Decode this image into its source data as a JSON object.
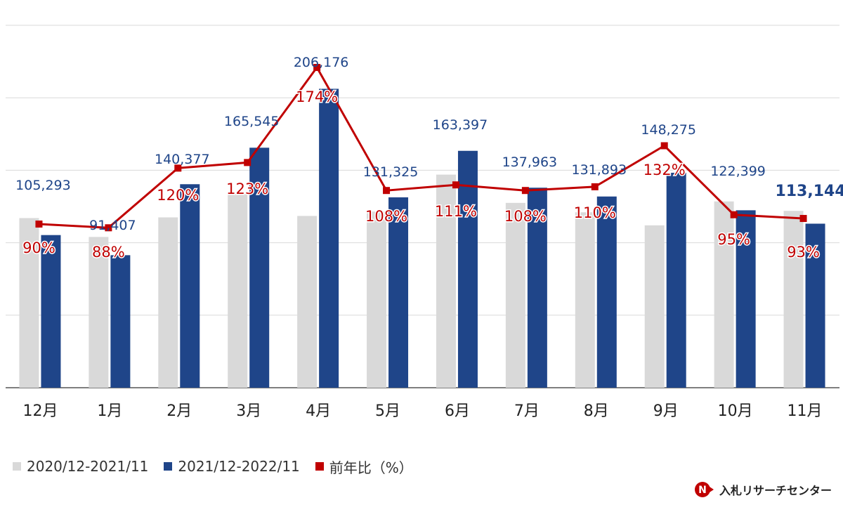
{
  "chart_data": {
    "type": "bar",
    "categories": [
      "12月",
      "1月",
      "2月",
      "3月",
      "4月",
      "5月",
      "6月",
      "7月",
      "8月",
      "9月",
      "10月",
      "11月"
    ],
    "ylim": [
      0,
      250000
    ],
    "grid": true,
    "legend_position": "bottom-left",
    "series": [
      {
        "name": "2020/12-2021/11",
        "kind": "bar",
        "color": "#d9d9d9",
        "values": [
          117000,
          104000,
          117500,
          134000,
          118500,
          121500,
          147000,
          127500,
          121000,
          112000,
          128500,
          122000
        ]
      },
      {
        "name": "2021/12-2022/11",
        "kind": "bar",
        "color": "#1f4589",
        "values": [
          105293,
          91407,
          140377,
          165545,
          206176,
          131325,
          163397,
          137963,
          131893,
          148275,
          122399,
          113144
        ],
        "labels": [
          "105,293",
          "91,407",
          "140,377",
          "165,545",
          "206,176",
          "131,325",
          "163,397",
          "137,963",
          "131,893",
          "148,275",
          "122,399",
          "113,144"
        ]
      },
      {
        "name": "前年比（%）",
        "kind": "line",
        "color": "#c00000",
        "values": [
          90,
          88,
          120,
          123,
          174,
          108,
          111,
          108,
          110,
          132,
          95,
          93
        ],
        "labels": [
          "90%",
          "88%",
          "120%",
          "123%",
          "174%",
          "108%",
          "111%",
          "108%",
          "110%",
          "132%",
          "95%",
          "93%"
        ]
      }
    ]
  },
  "brand": {
    "name": "入札リサーチセンター",
    "logo_icon": "n-arrow-logo-icon"
  }
}
